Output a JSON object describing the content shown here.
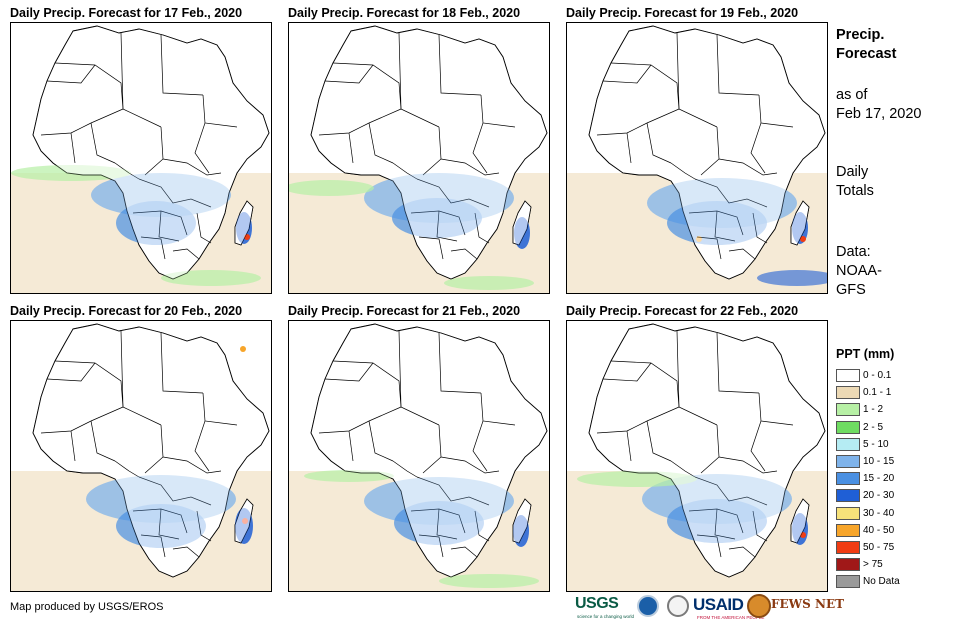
{
  "panels": [
    {
      "title": "Daily Precip. Forecast for 17 Feb., 2020"
    },
    {
      "title": "Daily Precip. Forecast for 18 Feb., 2020"
    },
    {
      "title": "Daily Precip. Forecast for 19 Feb., 2020"
    },
    {
      "title": "Daily Precip. Forecast for 20 Feb., 2020"
    },
    {
      "title": "Daily Precip. Forecast for 21 Feb., 2020"
    },
    {
      "title": "Daily Precip. Forecast for 22 Feb., 2020"
    }
  ],
  "side": {
    "title_line1": "Precip.",
    "title_line2": "Forecast",
    "asof_line1": "as of",
    "asof_line2": "Feb 17, 2020",
    "totals_line1": "Daily",
    "totals_line2": "Totals",
    "source_line1": "Data:",
    "source_line2": "NOAA-",
    "source_line3": "GFS"
  },
  "legend": {
    "title": "PPT (mm)",
    "items": [
      {
        "label": "0 - 0.1",
        "color": "#ffffff"
      },
      {
        "label": "0.1 - 1",
        "color": "#ecd9b5"
      },
      {
        "label": "1 - 2",
        "color": "#b7f0a5"
      },
      {
        "label": "2 - 5",
        "color": "#6fdc62"
      },
      {
        "label": "5 - 10",
        "color": "#b5ecf3"
      },
      {
        "label": "10 - 15",
        "color": "#7fb3ea"
      },
      {
        "label": "15 - 20",
        "color": "#4a90e2"
      },
      {
        "label": "20 - 30",
        "color": "#1f5fd6"
      },
      {
        "label": "30 - 40",
        "color": "#f7e27a"
      },
      {
        "label": "40 - 50",
        "color": "#f7a52a"
      },
      {
        "label": "50 - 75",
        "color": "#f03c13"
      },
      {
        "label": "> 75",
        "color": "#a01818"
      },
      {
        "label": "No Data",
        "color": "#9a9a9a"
      }
    ]
  },
  "credit": "Map produced by USGS/EROS",
  "logos": {
    "usgs": "USGS",
    "usgs_tagline": "science for a changing world",
    "usaid": "USAID",
    "usaid_tagline": "FROM THE AMERICAN PEOPLE",
    "fews": "FEWS NET"
  }
}
